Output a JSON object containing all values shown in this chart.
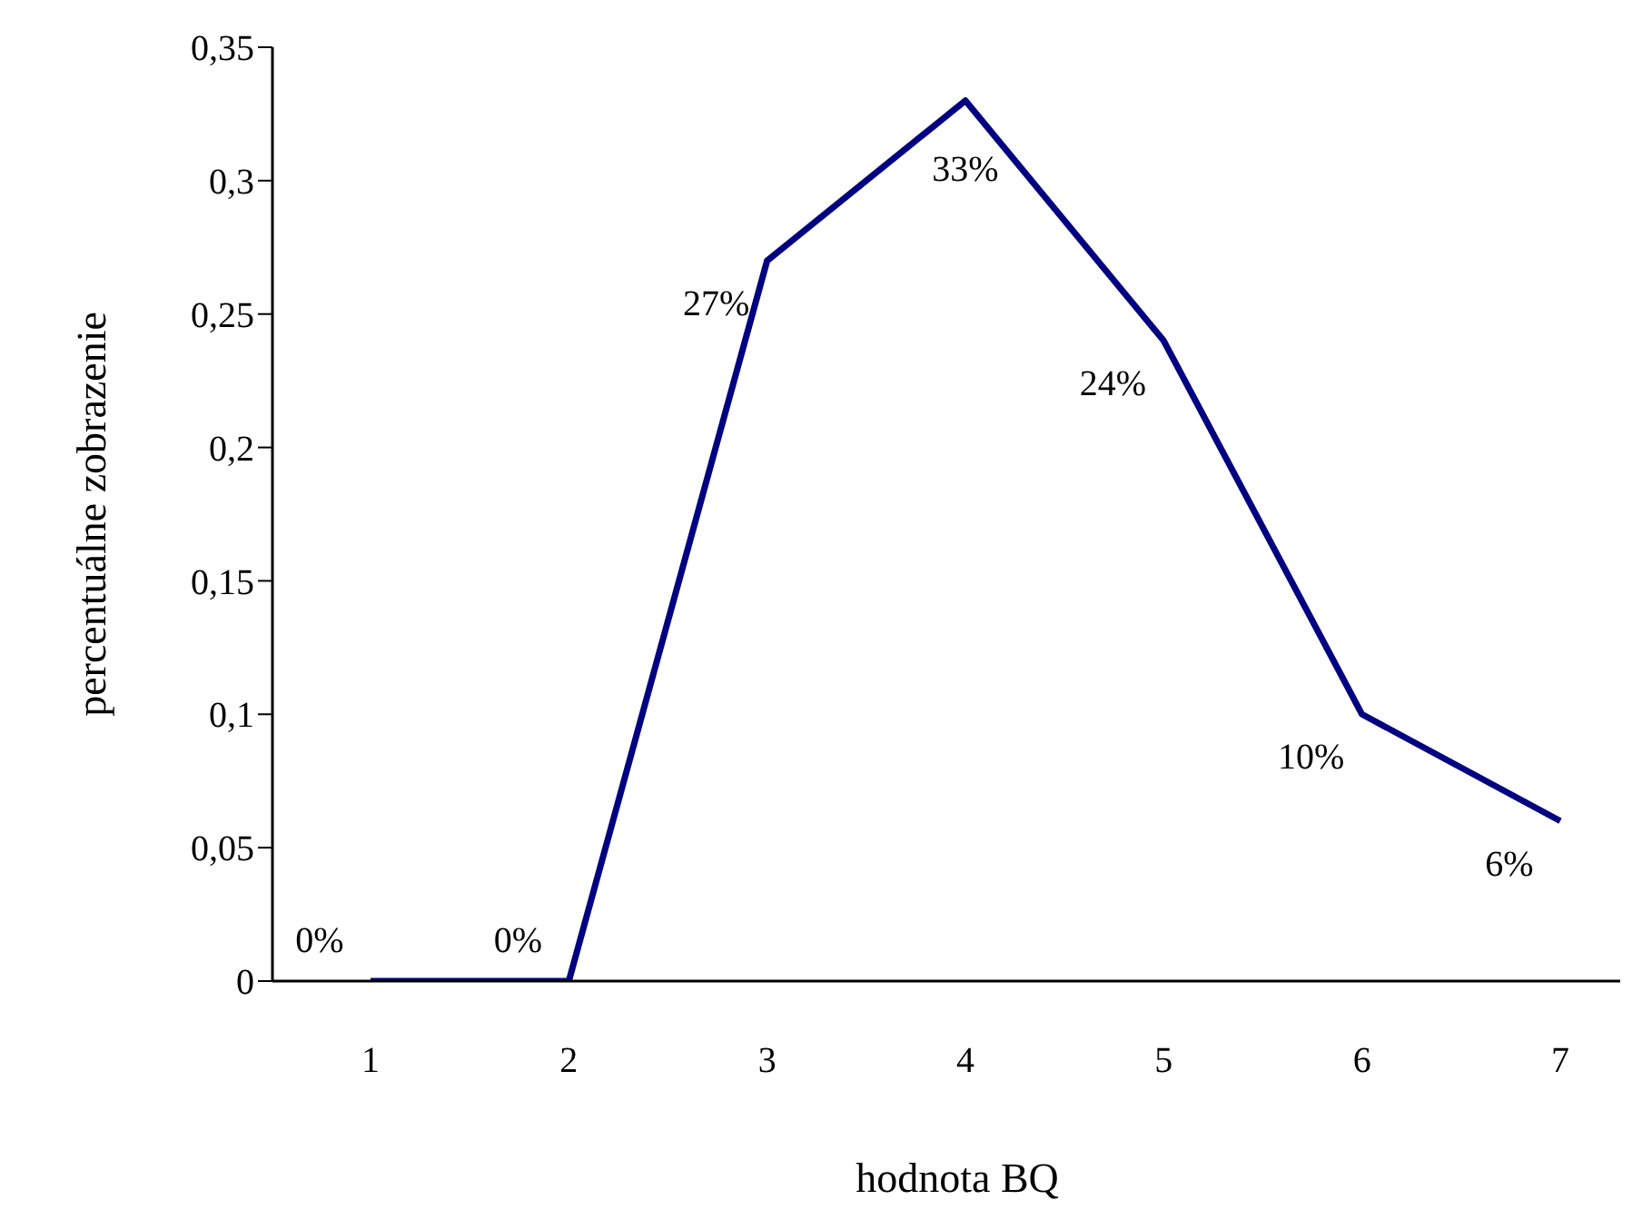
{
  "chart_data": {
    "type": "line",
    "xlabel": "hodnota BQ",
    "ylabel": "percentuálne zobrazenie",
    "categories": [
      "1",
      "2",
      "3",
      "4",
      "5",
      "6",
      "7"
    ],
    "series": [
      {
        "color": "#000080",
        "values": [
          0,
          0,
          0.27,
          0.33,
          0.24,
          0.1,
          0.06
        ],
        "value_labels": [
          "0%",
          "0%",
          "27%",
          "33%",
          "24%",
          "10%",
          "6%"
        ]
      }
    ],
    "ylim": [
      0,
      0.35
    ],
    "yticks": [
      {
        "value": 0,
        "label": "0"
      },
      {
        "value": 0.05,
        "label": "0,05"
      },
      {
        "value": 0.1,
        "label": "0,1"
      },
      {
        "value": 0.15,
        "label": "0,15"
      },
      {
        "value": 0.2,
        "label": "0,2"
      },
      {
        "value": 0.25,
        "label": "0,25"
      },
      {
        "value": 0.3,
        "label": "0,3"
      },
      {
        "value": 0.35,
        "label": "0,35"
      }
    ],
    "grid": false,
    "legend": false,
    "marker": "none",
    "line_style": "solid"
  }
}
